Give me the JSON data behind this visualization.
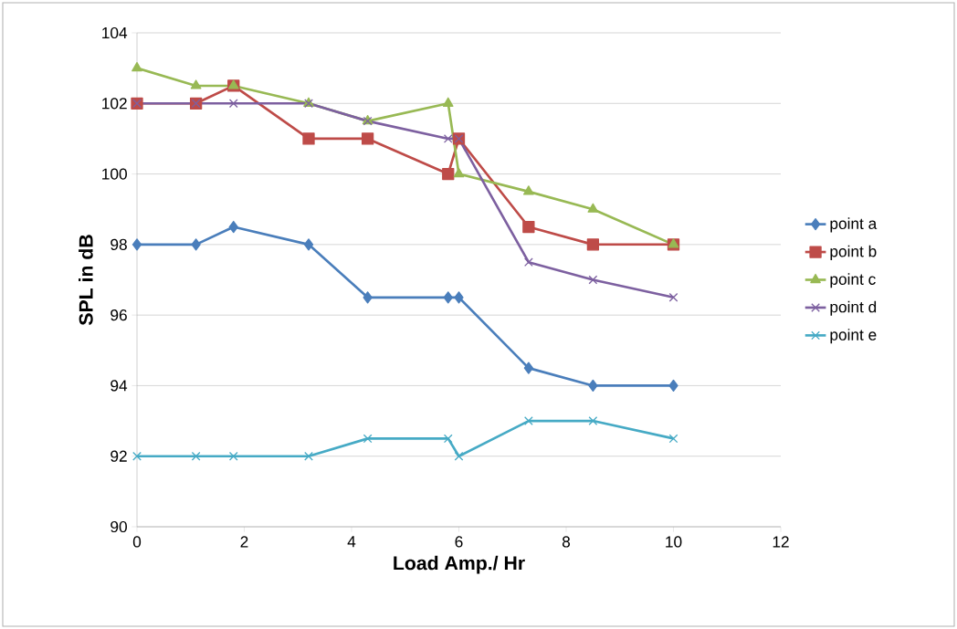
{
  "chart_data": {
    "type": "line",
    "xlabel": "Load  Amp./ Hr",
    "ylabel": "SPL in dB",
    "x": [
      0,
      1.1,
      1.8,
      3.2,
      4.3,
      5.8,
      6.0,
      7.3,
      8.5,
      10
    ],
    "series": [
      {
        "name": "point a",
        "color": "#4a7ebb",
        "marker": "diamond",
        "values": [
          98,
          98,
          98.5,
          98,
          96.5,
          96.5,
          96.5,
          94.5,
          94,
          94
        ]
      },
      {
        "name": "point b",
        "color": "#be4b48",
        "marker": "square",
        "values": [
          102,
          102,
          102.5,
          101,
          101,
          100,
          101,
          98.5,
          98,
          98
        ]
      },
      {
        "name": "point c",
        "color": "#98b954",
        "marker": "triangle",
        "values": [
          103,
          102.5,
          102.5,
          102,
          101.5,
          102,
          100,
          99.5,
          99,
          98
        ]
      },
      {
        "name": "point d",
        "color": "#7d60a0",
        "marker": "cross",
        "values": [
          102,
          102,
          102,
          102,
          101.5,
          101,
          101,
          97.5,
          97,
          96.5
        ]
      },
      {
        "name": "point e",
        "color": "#46aac5",
        "marker": "cross",
        "values": [
          92,
          92,
          92,
          92,
          92.5,
          92.5,
          92,
          93,
          93,
          92.5
        ]
      }
    ],
    "xlim": [
      0,
      12
    ],
    "xticks": [
      0,
      2,
      4,
      6,
      8,
      10,
      12
    ],
    "ylim": [
      90,
      104
    ],
    "yticks": [
      90,
      92,
      94,
      96,
      98,
      100,
      102,
      104
    ],
    "grid": "y",
    "legend": "right",
    "line_style": "solid"
  }
}
